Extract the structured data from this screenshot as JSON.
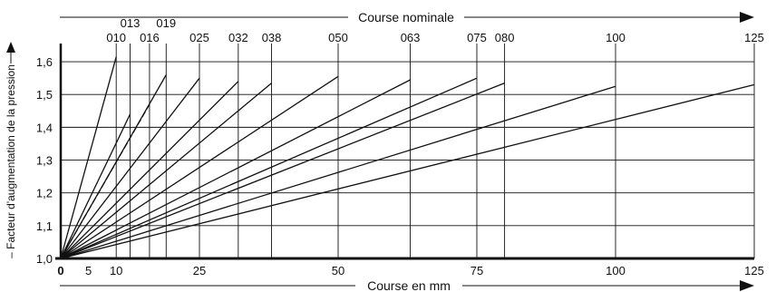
{
  "chart_data": {
    "type": "line",
    "xlabel": "Course en mm",
    "x2label": "Course nominale",
    "ylabel": "– Facteur d'augmentation de la pression",
    "xlim": [
      0,
      125
    ],
    "ylim": [
      1.0,
      1.65
    ],
    "grid": true,
    "x_ticks": [
      {
        "value": 0,
        "label": "0"
      },
      {
        "value": 5,
        "label": "5"
      },
      {
        "value": 10,
        "label": "10"
      },
      {
        "value": 25,
        "label": "25"
      },
      {
        "value": 50,
        "label": "50"
      },
      {
        "value": 75,
        "label": "75"
      },
      {
        "value": 100,
        "label": "100"
      },
      {
        "value": 125,
        "label": "125"
      }
    ],
    "y_ticks": [
      {
        "value": 1.0,
        "label": "1,0"
      },
      {
        "value": 1.1,
        "label": "1,1"
      },
      {
        "value": 1.2,
        "label": "1,2"
      },
      {
        "value": 1.3,
        "label": "1,3"
      },
      {
        "value": 1.4,
        "label": "1,4"
      },
      {
        "value": 1.5,
        "label": "1,5"
      },
      {
        "value": 1.6,
        "label": "1,6"
      }
    ],
    "nominal_strokes": [
      {
        "label": "010",
        "value": 10,
        "row": 2
      },
      {
        "label": "013",
        "value": 12.5,
        "row": 1
      },
      {
        "label": "016",
        "value": 16,
        "row": 2
      },
      {
        "label": "019",
        "value": 19,
        "row": 1
      },
      {
        "label": "025",
        "value": 25,
        "row": 2
      },
      {
        "label": "032",
        "value": 32,
        "row": 2
      },
      {
        "label": "038",
        "value": 38,
        "row": 2
      },
      {
        "label": "050",
        "value": 50,
        "row": 2
      },
      {
        "label": "063",
        "value": 63,
        "row": 2
      },
      {
        "label": "075",
        "value": 75,
        "row": 2
      },
      {
        "label": "080",
        "value": 80,
        "row": 2
      },
      {
        "label": "100",
        "value": 100,
        "row": 2
      },
      {
        "label": "125",
        "value": 125,
        "row": 2
      }
    ],
    "series": [
      {
        "values": [
          [
            0,
            1.0
          ],
          [
            10,
            1.615
          ]
        ]
      },
      {
        "values": [
          [
            0,
            1.0
          ],
          [
            12.5,
            1.44
          ]
        ]
      },
      {
        "values": [
          [
            0,
            1.0
          ],
          [
            16,
            1.47
          ]
        ],
        "dashed": true
      },
      {
        "values": [
          [
            0,
            1.0
          ],
          [
            19,
            1.56
          ]
        ]
      },
      {
        "values": [
          [
            0,
            1.0
          ],
          [
            25,
            1.55
          ]
        ]
      },
      {
        "values": [
          [
            0,
            1.0
          ],
          [
            32,
            1.54
          ]
        ]
      },
      {
        "values": [
          [
            0,
            1.0
          ],
          [
            38,
            1.535
          ]
        ]
      },
      {
        "values": [
          [
            0,
            1.0
          ],
          [
            50,
            1.555
          ]
        ]
      },
      {
        "values": [
          [
            0,
            1.0
          ],
          [
            63,
            1.545
          ]
        ]
      },
      {
        "values": [
          [
            0,
            1.0
          ],
          [
            75,
            1.55
          ]
        ]
      },
      {
        "values": [
          [
            0,
            1.0
          ],
          [
            80,
            1.535
          ]
        ]
      },
      {
        "values": [
          [
            0,
            1.0
          ],
          [
            100,
            1.525
          ]
        ]
      },
      {
        "values": [
          [
            0,
            1.0
          ],
          [
            125,
            1.53
          ]
        ]
      }
    ]
  }
}
